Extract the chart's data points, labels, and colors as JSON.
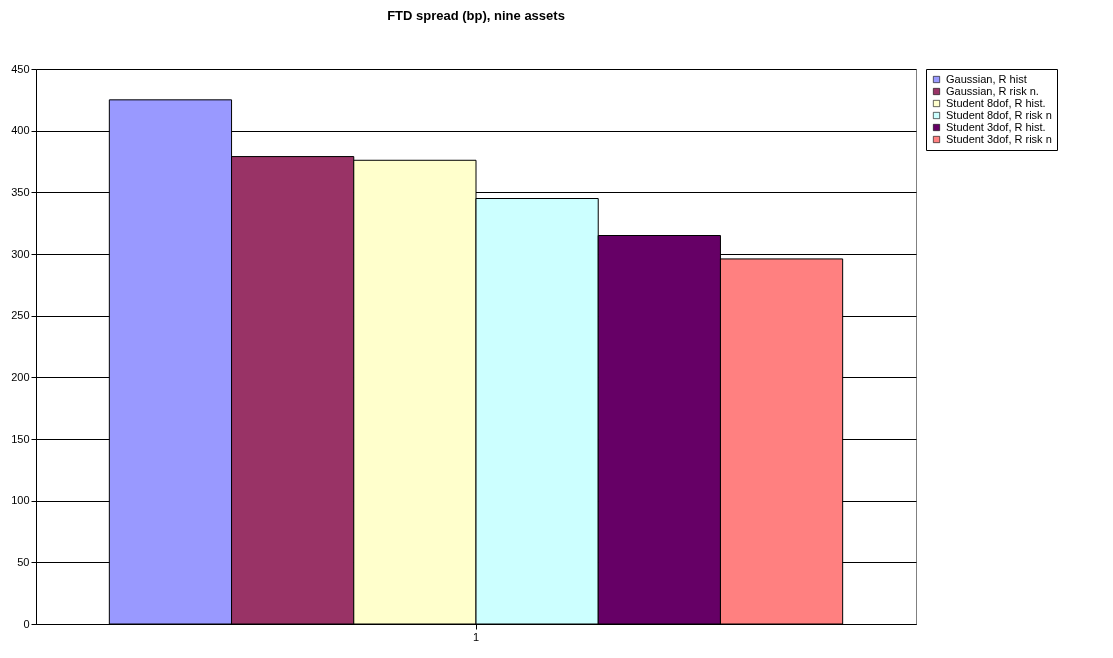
{
  "chart_data": {
    "type": "bar",
    "title": "FTD spread (bp), nine assets",
    "categories": [
      "1"
    ],
    "series": [
      {
        "name": "Gaussian, R hist",
        "color": "#9999ff",
        "values": [
          425
        ]
      },
      {
        "name": "Gaussian, R risk n.",
        "color": "#993366",
        "values": [
          379
        ]
      },
      {
        "name": "Student 8dof, R hist.",
        "color": "#ffffcc",
        "values": [
          376
        ]
      },
      {
        "name": "Student 8dof, R risk n",
        "color": "#ccffff",
        "values": [
          345
        ]
      },
      {
        "name": "Student 3dof, R hist.",
        "color": "#660066",
        "values": [
          315
        ]
      },
      {
        "name": "Student 3dof, R risk n",
        "color": "#ff8080",
        "values": [
          296
        ]
      }
    ],
    "ylim": [
      0,
      450
    ],
    "yticks": [
      0,
      50,
      100,
      150,
      200,
      250,
      300,
      350,
      400,
      450
    ],
    "grid": "y",
    "legend": "right"
  }
}
